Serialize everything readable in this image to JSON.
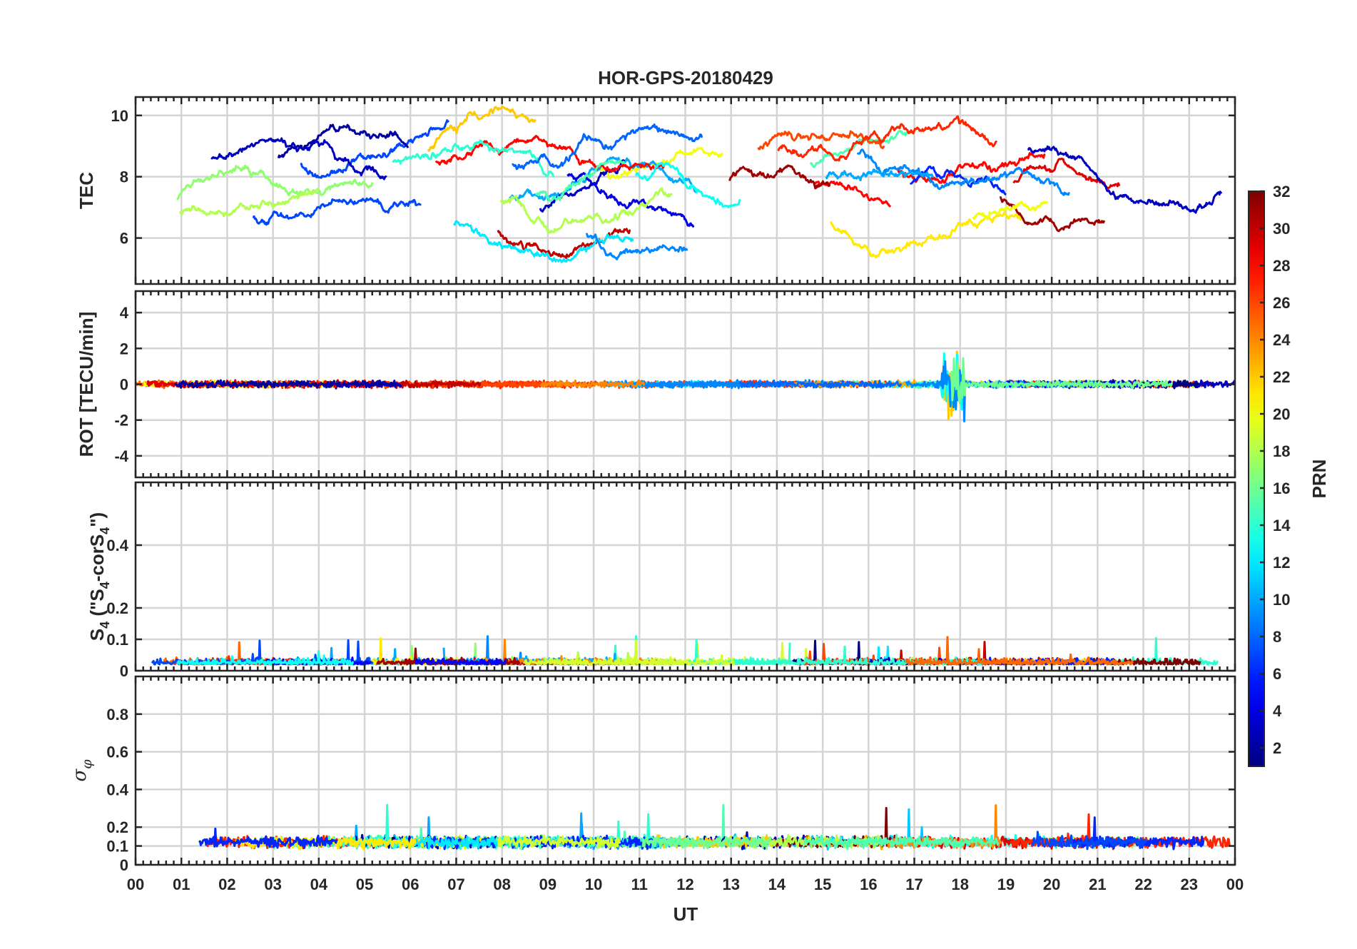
{
  "figure": {
    "title": "HOR-GPS-20180429"
  },
  "chart_data": [
    {
      "type": "line",
      "name": "tec-panel",
      "ylabel": "TEC",
      "xlabel": "",
      "xlim": [
        0,
        24
      ],
      "ylim": [
        4.5,
        10.6
      ],
      "yticks": [
        6,
        8,
        10
      ],
      "ytick_labels": [
        "6",
        "8",
        "10"
      ],
      "grid": true,
      "series_note_count": 32
    },
    {
      "type": "line",
      "name": "rot-panel",
      "ylabel": "ROT [TECU/min]",
      "xlabel": "",
      "xlim": [
        0,
        24
      ],
      "ylim": [
        -5.2,
        5.2
      ],
      "yticks": [
        -4,
        -2,
        0,
        2,
        4
      ],
      "ytick_labels": [
        "-4",
        "-2",
        "0",
        "2",
        "4"
      ],
      "grid": true
    },
    {
      "type": "line",
      "name": "s4-panel",
      "ylabel_parts": [
        "S",
        "4",
        " (\"S",
        "4",
        "-corS",
        "4",
        "\")"
      ],
      "xlabel": "",
      "xlim": [
        0,
        24
      ],
      "ylim": [
        0,
        0.6
      ],
      "yticks": [
        0,
        0.1,
        0.2,
        0.4
      ],
      "ytick_labels": [
        "0",
        "0.1",
        "0.2",
        "0.4"
      ],
      "grid": true
    },
    {
      "type": "line",
      "name": "sigma-phi-panel",
      "ylabel_parts": [
        "σ",
        "φ"
      ],
      "xlabel": "UT",
      "xlim": [
        0,
        24
      ],
      "ylim": [
        0,
        1
      ],
      "yticks": [
        0,
        0.1,
        0.2,
        0.4,
        0.6,
        0.8
      ],
      "ytick_labels": [
        "0",
        "0.1",
        "0.2",
        "0.4",
        "0.6",
        "0.8"
      ],
      "xticks": [
        0,
        1,
        2,
        3,
        4,
        5,
        6,
        7,
        8,
        9,
        10,
        11,
        12,
        13,
        14,
        15,
        16,
        17,
        18,
        19,
        20,
        21,
        22,
        23,
        24
      ],
      "xtick_labels": [
        "00",
        "01",
        "02",
        "03",
        "04",
        "05",
        "06",
        "07",
        "08",
        "09",
        "10",
        "11",
        "12",
        "13",
        "14",
        "15",
        "16",
        "17",
        "18",
        "19",
        "20",
        "21",
        "22",
        "23",
        "00"
      ],
      "grid": true
    }
  ],
  "colorbar": {
    "label": "PRN",
    "range": [
      1,
      32
    ],
    "ticks": [
      2,
      4,
      6,
      8,
      10,
      12,
      14,
      16,
      18,
      20,
      22,
      24,
      26,
      28,
      30,
      32
    ],
    "tick_labels": [
      "2",
      "4",
      "6",
      "8",
      "10",
      "12",
      "14",
      "16",
      "18",
      "20",
      "22",
      "24",
      "26",
      "28",
      "30",
      "32"
    ],
    "colormap": "jet",
    "colors": [
      "#00007f",
      "#0000ff",
      "#007fff",
      "#00ffff",
      "#7fff7f",
      "#ffff00",
      "#ff7f00",
      "#ff0000",
      "#7f0000"
    ]
  }
}
